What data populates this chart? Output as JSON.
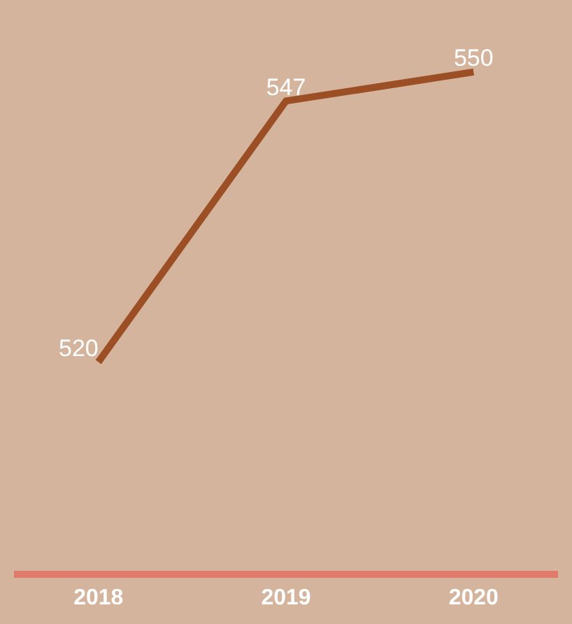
{
  "chart_data": {
    "type": "line",
    "categories": [
      "2018",
      "2019",
      "2020"
    ],
    "series": [
      {
        "color": "#9c4f25",
        "values": [
          520,
          547,
          550
        ]
      }
    ],
    "data_labels": true,
    "grid": false,
    "marker": "none",
    "line_style": "solid",
    "tick_labels": "x"
  }
}
